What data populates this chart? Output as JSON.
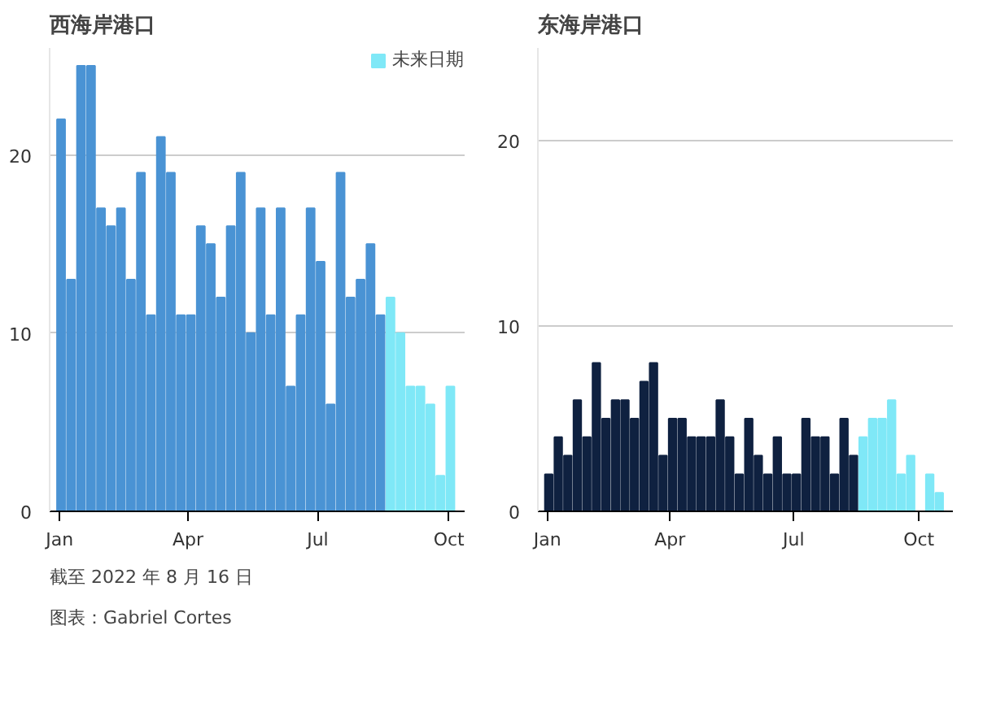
{
  "chart_data": [
    {
      "type": "bar",
      "title": "西海岸港口",
      "legend": "top right",
      "grid": "y",
      "ylim": [
        0,
        26
      ],
      "yticks": [
        0,
        10,
        20
      ],
      "xlim": [
        "2021-12-25",
        "2022-10-12"
      ],
      "xticks": [
        {
          "value": "2022-01-01",
          "label": "Jan"
        },
        {
          "value": "2022-04-01",
          "label": "Apr"
        },
        {
          "value": "2022-07-01",
          "label": "Jul"
        },
        {
          "value": "2022-10-01",
          "label": "Oct"
        }
      ],
      "series": [
        {
          "color": "#4a93d4",
          "x": [
            "2022-01-02",
            "2022-01-09",
            "2022-01-16",
            "2022-01-23",
            "2022-01-30",
            "2022-02-06",
            "2022-02-13",
            "2022-02-20",
            "2022-02-27",
            "2022-03-06",
            "2022-03-13",
            "2022-03-20",
            "2022-03-27",
            "2022-04-03",
            "2022-04-10",
            "2022-04-17",
            "2022-04-24",
            "2022-05-01",
            "2022-05-08",
            "2022-05-15",
            "2022-05-22",
            "2022-05-29",
            "2022-06-05",
            "2022-06-12",
            "2022-06-19",
            "2022-06-26",
            "2022-07-03",
            "2022-07-10",
            "2022-07-17",
            "2022-07-24",
            "2022-07-31",
            "2022-08-07",
            "2022-08-14"
          ],
          "values": [
            22,
            13,
            25,
            25,
            17,
            16,
            17,
            13,
            19,
            11,
            21,
            19,
            11,
            11,
            16,
            15,
            12,
            16,
            19,
            10,
            17,
            11,
            17,
            7,
            11,
            17,
            14,
            6,
            19,
            12,
            13,
            15,
            11
          ]
        },
        {
          "name": "未来日期",
          "color": "#7fe8f7",
          "x": [
            "2022-08-21",
            "2022-08-28",
            "2022-09-04",
            "2022-09-11",
            "2022-09-18",
            "2022-09-25",
            "2022-10-02"
          ],
          "values": [
            12,
            10,
            7,
            7,
            6,
            2,
            7
          ]
        }
      ],
      "annotations": [
        "截至 2022 年 8 月 16 日",
        "图表：Gabriel Cortes"
      ]
    },
    {
      "type": "bar",
      "title": "东海岸港口",
      "grid": "y",
      "ylim": [
        0,
        25
      ],
      "yticks": [
        0,
        10,
        20
      ],
      "xlim": [
        "2021-12-25",
        "2022-10-26"
      ],
      "xticks": [
        {
          "value": "2022-01-01",
          "label": "Jan"
        },
        {
          "value": "2022-04-01",
          "label": "Apr"
        },
        {
          "value": "2022-07-01",
          "label": "Jul"
        },
        {
          "value": "2022-10-01",
          "label": "Oct"
        }
      ],
      "series": [
        {
          "color": "#0f2140",
          "x": [
            "2022-01-02",
            "2022-01-09",
            "2022-01-16",
            "2022-01-23",
            "2022-01-30",
            "2022-02-06",
            "2022-02-13",
            "2022-02-20",
            "2022-02-27",
            "2022-03-06",
            "2022-03-13",
            "2022-03-20",
            "2022-03-27",
            "2022-04-03",
            "2022-04-10",
            "2022-04-17",
            "2022-04-24",
            "2022-05-01",
            "2022-05-08",
            "2022-05-15",
            "2022-05-22",
            "2022-05-29",
            "2022-06-05",
            "2022-06-12",
            "2022-06-19",
            "2022-06-26",
            "2022-07-03",
            "2022-07-10",
            "2022-07-17",
            "2022-07-24",
            "2022-07-31",
            "2022-08-07",
            "2022-08-14"
          ],
          "values": [
            2,
            4,
            3,
            6,
            4,
            8,
            5,
            6,
            6,
            5,
            7,
            8,
            3,
            5,
            5,
            4,
            4,
            4,
            6,
            4,
            2,
            5,
            3,
            2,
            4,
            2,
            2,
            5,
            4,
            4,
            2,
            5,
            3
          ]
        },
        {
          "color": "#7fe8f7",
          "x": [
            "2022-08-21",
            "2022-08-28",
            "2022-09-04",
            "2022-09-11",
            "2022-09-18",
            "2022-09-25",
            "2022-10-02",
            "2022-10-09",
            "2022-10-16"
          ],
          "values": [
            4,
            5,
            5,
            6,
            2,
            3,
            null,
            2,
            1
          ]
        }
      ]
    }
  ]
}
